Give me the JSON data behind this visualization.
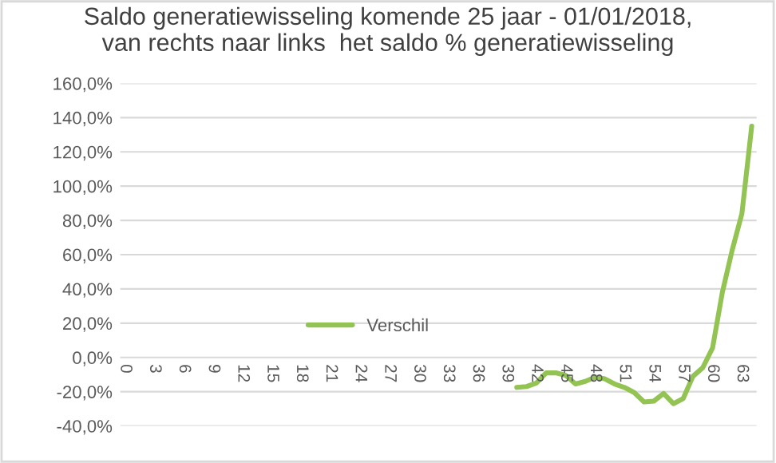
{
  "chart_data": {
    "type": "line",
    "title": "Saldo generatiewisseling komende 25 jaar - 01/01/2018,\nvan rechts naar links  het saldo % generatiewisseling",
    "categories": [
      "0",
      null,
      null,
      "3",
      null,
      null,
      "6",
      null,
      null,
      "9",
      null,
      null,
      "12",
      null,
      null,
      "15",
      null,
      null,
      "18",
      null,
      null,
      "21",
      null,
      null,
      "24",
      null,
      null,
      "27",
      null,
      null,
      "30",
      null,
      null,
      "33",
      null,
      null,
      "36",
      null,
      null,
      "39",
      null,
      null,
      "42",
      null,
      null,
      "45",
      null,
      null,
      "48",
      null,
      null,
      "51",
      null,
      null,
      "54",
      null,
      null,
      "57",
      null,
      null,
      "60",
      null,
      null,
      "63",
      null
    ],
    "series": [
      {
        "name": "Verschil",
        "color": "#92c353",
        "values": [
          null,
          null,
          null,
          null,
          null,
          null,
          null,
          null,
          null,
          null,
          null,
          null,
          null,
          null,
          null,
          null,
          null,
          null,
          null,
          null,
          null,
          null,
          null,
          null,
          null,
          null,
          null,
          null,
          null,
          null,
          null,
          null,
          null,
          null,
          null,
          null,
          null,
          null,
          null,
          null,
          -17.5,
          -17,
          -15,
          -9,
          -9,
          -10.5,
          -15.5,
          -14,
          -11.5,
          -12.5,
          -15.5,
          -17.5,
          -20.5,
          -26,
          -25.5,
          -21,
          -27,
          -24,
          -11,
          -6,
          5.5,
          38,
          62.5,
          84,
          135
        ]
      }
    ],
    "ylim": [
      -40,
      160
    ],
    "yticks": [
      {
        "value": -40,
        "label": "-40,0%"
      },
      {
        "value": -20,
        "label": "-20,0%"
      },
      {
        "value": 0,
        "label": "0,0%"
      },
      {
        "value": 20,
        "label": "20,0%"
      },
      {
        "value": 40,
        "label": "40,0%"
      },
      {
        "value": 60,
        "label": "60,0%"
      },
      {
        "value": 80,
        "label": "80,0%"
      },
      {
        "value": 100,
        "label": "100,0%"
      },
      {
        "value": 120,
        "label": "120,0%"
      },
      {
        "value": 140,
        "label": "140,0%"
      },
      {
        "value": 160,
        "label": "160,0%"
      }
    ],
    "grid": "y",
    "legend": "center",
    "marker": "none",
    "line_style": "solid"
  }
}
